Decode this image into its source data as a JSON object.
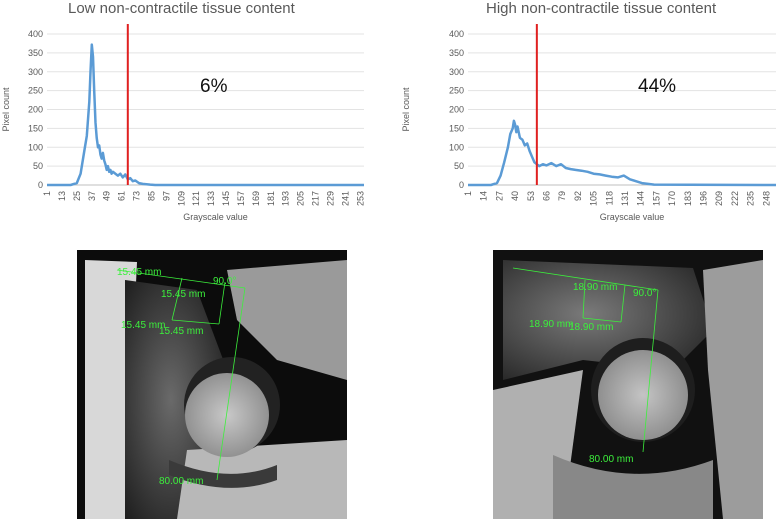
{
  "chart_data": [
    {
      "type": "line",
      "title": "Low non-contractile tissue content",
      "xlabel": "Grayscale value",
      "ylabel": "Pixel count",
      "ylim": [
        0,
        400
      ],
      "yticks": [
        0,
        50,
        100,
        150,
        200,
        250,
        300,
        350,
        400
      ],
      "xlim": [
        1,
        256
      ],
      "xticks": [
        1,
        13,
        25,
        37,
        49,
        61,
        73,
        85,
        97,
        109,
        121,
        133,
        145,
        157,
        169,
        181,
        193,
        205,
        217,
        229,
        241,
        253
      ],
      "grid": true,
      "series": [
        {
          "color": "#5b9bd5",
          "x": [
            1,
            20,
            25,
            28,
            31,
            33,
            35,
            36,
            37,
            38,
            39,
            40,
            41,
            42,
            43,
            44,
            45,
            46,
            47,
            48,
            49,
            50,
            51,
            52,
            53,
            54,
            56,
            58,
            60,
            62,
            64,
            66,
            68,
            70,
            72,
            75,
            78,
            81,
            84,
            88,
            256
          ],
          "y": [
            0,
            0,
            5,
            30,
            90,
            130,
            220,
            300,
            372,
            340,
            250,
            165,
            125,
            100,
            105,
            80,
            70,
            85,
            65,
            55,
            40,
            50,
            35,
            40,
            30,
            35,
            30,
            25,
            30,
            20,
            28,
            15,
            18,
            10,
            12,
            5,
            3,
            2,
            1,
            0,
            0
          ]
        }
      ],
      "threshold": 66,
      "annotation": "6%"
    },
    {
      "type": "line",
      "title": "High non-contractile tissue content",
      "xlabel": "Grayscale value",
      "ylabel": "Pixel count",
      "ylim": [
        0,
        400
      ],
      "yticks": [
        0,
        50,
        100,
        150,
        200,
        250,
        300,
        350,
        400
      ],
      "xlim": [
        1,
        256
      ],
      "xticks": [
        1,
        14,
        27,
        40,
        53,
        66,
        79,
        92,
        105,
        118,
        131,
        144,
        157,
        170,
        183,
        196,
        209,
        222,
        235,
        248
      ],
      "grid": true,
      "series": [
        {
          "color": "#5b9bd5",
          "x": [
            1,
            20,
            25,
            28,
            31,
            34,
            36,
            38,
            39,
            40,
            41,
            42,
            44,
            46,
            48,
            50,
            52,
            54,
            56,
            58,
            60,
            63,
            66,
            70,
            74,
            78,
            82,
            86,
            90,
            95,
            100,
            105,
            110,
            115,
            120,
            125,
            130,
            135,
            140,
            145,
            150,
            155,
            256
          ],
          "y": [
            0,
            0,
            5,
            25,
            60,
            100,
            135,
            150,
            170,
            160,
            140,
            155,
            125,
            120,
            105,
            110,
            90,
            75,
            60,
            55,
            50,
            55,
            52,
            58,
            50,
            55,
            45,
            42,
            40,
            38,
            35,
            30,
            28,
            25,
            22,
            20,
            25,
            15,
            10,
            5,
            3,
            1,
            0
          ]
        }
      ],
      "threshold": 58,
      "annotation": "44%"
    }
  ],
  "images": [
    {
      "measurements": [
        "15.45 mm",
        "90.0°",
        "15.45 mm",
        "15.45 mm",
        "15.45 mm",
        "80.00 mm"
      ]
    },
    {
      "measurements": [
        "18.90 mm",
        "90.0°",
        "18.90 mm",
        "18.90 mm",
        "80.00 mm"
      ]
    }
  ]
}
